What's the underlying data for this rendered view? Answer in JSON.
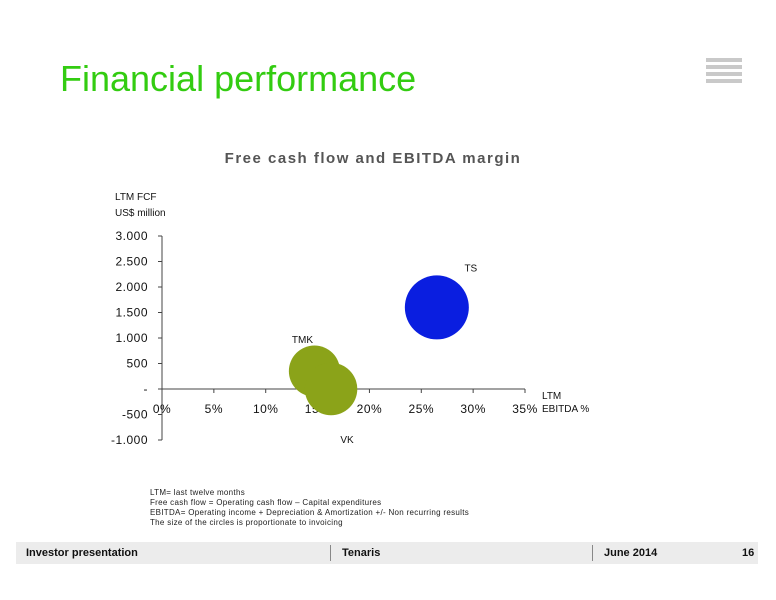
{
  "header": {
    "title": "Financial performance"
  },
  "chart_data": {
    "type": "bubble",
    "title": "Free cash flow and EBITDA margin",
    "ylabel_lines": [
      "LTM FCF",
      "US$ million"
    ],
    "xlabel_lines": [
      "LTM",
      "EBITDA %"
    ],
    "ylim": [
      -1000,
      3000
    ],
    "xlim": [
      0,
      35
    ],
    "y_ticks": [
      3000,
      2500,
      2000,
      1500,
      1000,
      500,
      0,
      -500,
      -1000
    ],
    "y_tick_labels": [
      "3.000",
      "2.500",
      "2.000",
      "1.500",
      "1.000",
      "500",
      "-",
      "-500",
      "-1.000"
    ],
    "x_ticks": [
      0,
      5,
      10,
      15,
      20,
      25,
      30,
      35
    ],
    "x_tick_labels": [
      "0%",
      "5%",
      "10%",
      "15%",
      "20%",
      "25%",
      "30%",
      "35%"
    ],
    "points": [
      {
        "label": "TS",
        "x": 26.5,
        "y": 1600,
        "size": 1.0,
        "color": "#0a1ee0"
      },
      {
        "label": "TMK",
        "x": 14.7,
        "y": 350,
        "size": 0.8,
        "color": "#8ba319"
      },
      {
        "label": "VK",
        "x": 16.3,
        "y": 0,
        "size": 0.82,
        "color": "#8ba319"
      }
    ]
  },
  "notes": [
    "LTM= last twelve months",
    "Free cash flow = Operating cash flow – Capital expenditures",
    "EBITDA= Operating income + Depreciation & Amortization +/- Non recurring results",
    "The size of the circles is proportionate to invoicing"
  ],
  "footer": {
    "left": "Investor presentation",
    "center": "Tenaris",
    "date": "June 2014",
    "page": "16"
  }
}
